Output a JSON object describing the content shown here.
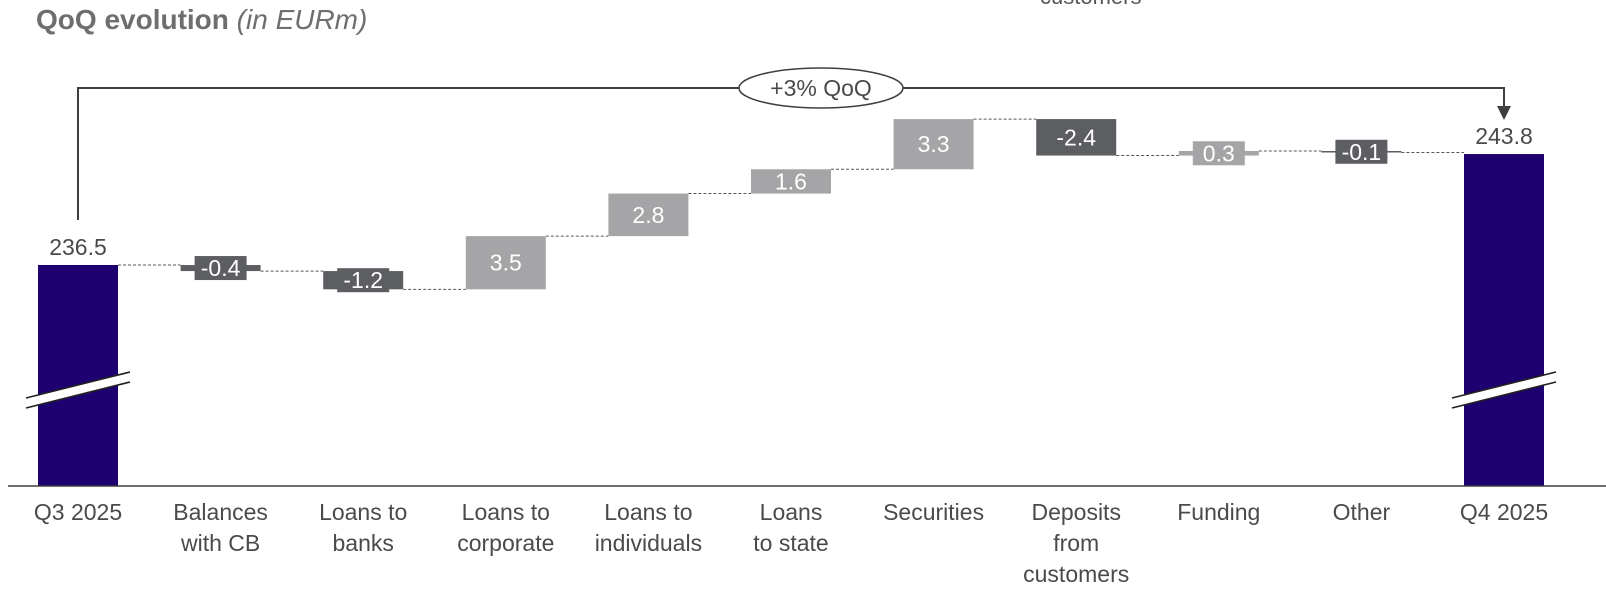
{
  "title": "QoQ evolution",
  "subtitle": "(in EURm)",
  "top_cutoff_text": "customers",
  "colors": {
    "total": "#1e0070",
    "positive": "#a5a5a7",
    "negative": "#5d5e62",
    "axis": "#3f3f3f",
    "label": "#4a4a4a"
  },
  "chart_data": {
    "type": "bar",
    "subtype": "waterfall",
    "categories": [
      "Q3  2025",
      "Balances with CB",
      "Loans to banks",
      "Loans to corporate",
      "Loans to individuals",
      "Loans to state",
      "Securities",
      "Deposits from customers",
      "Funding",
      "Other",
      "Q4  2025"
    ],
    "category_lines": [
      [
        "Q3  2025"
      ],
      [
        "Balances",
        "with CB"
      ],
      [
        "Loans to",
        "banks"
      ],
      [
        "Loans to",
        "corporate"
      ],
      [
        "Loans to",
        "individuals"
      ],
      [
        "Loans",
        "to state"
      ],
      [
        "Securities"
      ],
      [
        "Deposits",
        "from",
        "customers"
      ],
      [
        "Funding"
      ],
      [
        "Other"
      ],
      [
        "Q4  2025"
      ]
    ],
    "values": [
      236.5,
      -0.4,
      -1.2,
      3.5,
      2.8,
      1.6,
      3.3,
      -2.4,
      0.3,
      -0.1,
      243.8
    ],
    "value_labels": [
      "236.5",
      "-0.4",
      "-1.2",
      "3.5",
      "2.8",
      "1.6",
      "3.3",
      "-2.4",
      "0.3",
      "-0.1",
      "243.8"
    ],
    "kinds": [
      "total",
      "delta",
      "delta",
      "delta",
      "delta",
      "delta",
      "delta",
      "delta",
      "delta",
      "delta",
      "total"
    ],
    "axis_break": true,
    "annotation": "+3% QoQ",
    "ylim": [
      220,
      246
    ]
  }
}
